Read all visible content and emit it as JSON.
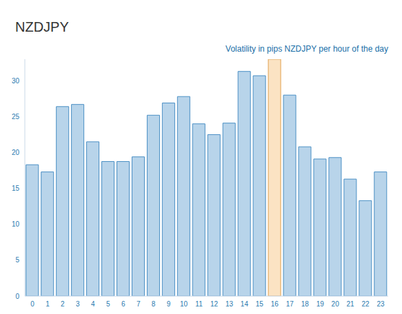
{
  "chart_data": {
    "type": "bar",
    "title": "NZDJPY",
    "subtitle": "Volatility in pips NZDJPY per hour of the day",
    "categories": [
      0,
      1,
      2,
      3,
      4,
      5,
      6,
      7,
      8,
      9,
      10,
      11,
      12,
      13,
      14,
      15,
      16,
      17,
      18,
      19,
      20,
      21,
      22,
      23
    ],
    "values": [
      18.3,
      17.3,
      26.4,
      26.7,
      21.5,
      18.75,
      18.75,
      19.4,
      25.2,
      26.9,
      27.8,
      24.0,
      22.5,
      24.1,
      31.3,
      30.7,
      33.0,
      28.0,
      20.8,
      19.1,
      19.3,
      16.3,
      13.3,
      17.3
    ],
    "colors": [
      "#b8d4ea",
      "#b8d4ea",
      "#b8d4ea",
      "#b8d4ea",
      "#b8d4ea",
      "#b8d4ea",
      "#b8d4ea",
      "#b8d4ea",
      "#b8d4ea",
      "#b8d4ea",
      "#b8d4ea",
      "#b8d4ea",
      "#b8d4ea",
      "#b8d4ea",
      "#b8d4ea",
      "#b8d4ea",
      "#fbe3c3",
      "#b8d4ea",
      "#b8d4ea",
      "#b8d4ea",
      "#b8d4ea",
      "#b8d4ea",
      "#b8d4ea",
      "#b8d4ea"
    ],
    "ylim": [
      0,
      33
    ],
    "yticks": [
      0,
      5,
      10,
      15,
      20,
      25,
      30
    ],
    "grid": false
  }
}
